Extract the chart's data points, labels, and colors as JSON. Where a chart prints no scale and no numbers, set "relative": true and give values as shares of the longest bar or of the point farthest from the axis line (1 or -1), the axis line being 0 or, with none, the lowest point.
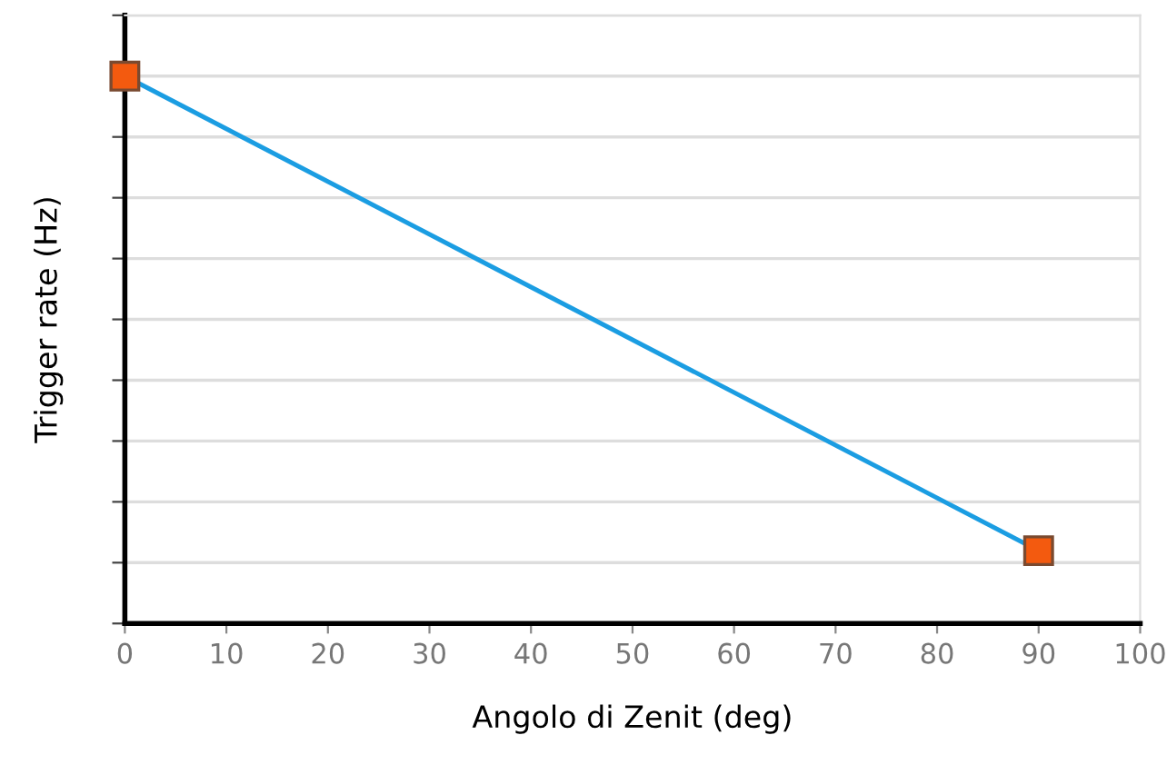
{
  "chart_data": {
    "type": "line",
    "xlabel": "Angolo di Zenit (deg)",
    "ylabel": "Trigger rate (Hz)",
    "relative": true,
    "x": [
      0,
      90
    ],
    "series": [
      {
        "color": "#1b9de2",
        "values": [
          1,
          0.133
        ]
      }
    ],
    "xlim": [
      0,
      100
    ],
    "xticks": [
      0,
      10,
      20,
      30,
      40,
      50,
      60,
      70,
      80,
      90,
      100
    ],
    "grid": "y",
    "marker": "square",
    "line_style": "solid"
  }
}
